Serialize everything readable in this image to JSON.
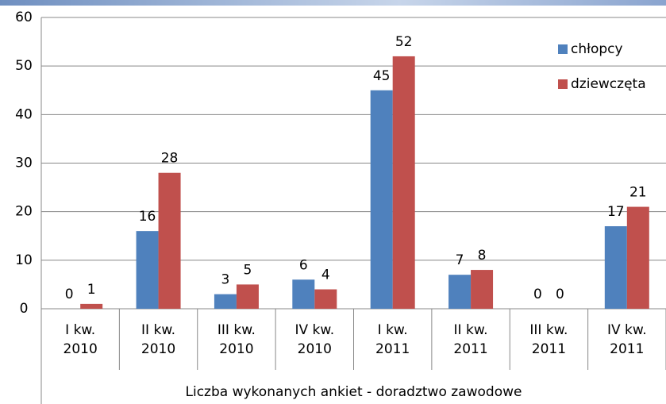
{
  "chart_data": {
    "type": "bar",
    "x_axis_label": "Liczba wykonanych ankiet - doradztwo zawodowe",
    "categories": [
      "I kw. 2010",
      "II kw. 2010",
      "III kw. 2010",
      "IV kw. 2010",
      "I kw. 2011",
      "II kw. 2011",
      "III kw. 2011",
      "IV kw. 2011"
    ],
    "series": [
      {
        "name": "chłopcy",
        "color": "#4f81bd",
        "values": [
          0,
          16,
          3,
          6,
          45,
          7,
          0,
          17
        ]
      },
      {
        "name": "dziewczęta",
        "color": "#c0504d",
        "values": [
          1,
          28,
          5,
          4,
          52,
          8,
          0,
          21
        ]
      }
    ],
    "ylim": [
      0,
      60
    ],
    "yticks": [
      0,
      10,
      20,
      30,
      40,
      50,
      60
    ],
    "grid": true,
    "legend": "top-right"
  }
}
